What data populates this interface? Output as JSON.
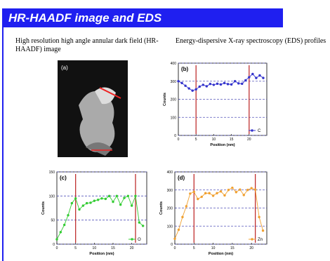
{
  "header": {
    "title": "HR-HAADF image and EDS"
  },
  "left": {
    "caption": "High resolution high angle annular dark field (HR-HAADF) image",
    "image_label": "(a)"
  },
  "right": {
    "caption": "Energy-dispersive X-ray spectroscopy (EDS) profiles"
  },
  "chart_data": [
    {
      "type": "line",
      "label": "(b)",
      "xlabel": "Position (nm)",
      "ylabel": "Counts",
      "x": [
        0,
        1,
        2,
        3,
        4,
        5,
        6,
        7,
        8,
        9,
        10,
        11,
        12,
        13,
        14,
        15,
        16,
        17,
        18,
        19,
        20,
        21,
        22,
        23,
        24
      ],
      "series": [
        {
          "name": "C",
          "color": "#3333cc",
          "values": [
            300,
            290,
            275,
            260,
            248,
            255,
            270,
            280,
            272,
            285,
            280,
            286,
            282,
            290,
            284,
            282,
            300,
            288,
            286,
            305,
            322,
            340,
            318,
            332,
            318
          ]
        }
      ],
      "xlim": [
        0,
        25
      ],
      "ylim": [
        0,
        400
      ],
      "xticks": [
        0,
        5,
        10,
        15,
        20
      ],
      "yticks": [
        0,
        100,
        200,
        300,
        400
      ],
      "grid": true,
      "vlines": [
        5,
        20
      ]
    },
    {
      "type": "line",
      "label": "(c)",
      "xlabel": "Position (nm)",
      "ylabel": "Counts",
      "x": [
        0,
        1,
        2,
        3,
        4,
        5,
        6,
        7,
        8,
        9,
        10,
        11,
        12,
        13,
        14,
        15,
        16,
        17,
        18,
        19,
        20,
        21,
        22,
        23
      ],
      "series": [
        {
          "name": "O",
          "color": "#33cc33",
          "values": [
            10,
            25,
            40,
            60,
            85,
            95,
            72,
            80,
            85,
            86,
            90,
            92,
            95,
            94,
            100,
            88,
            100,
            82,
            96,
            100,
            80,
            100,
            45,
            38
          ]
        }
      ],
      "xlim": [
        0,
        24
      ],
      "ylim": [
        0,
        150
      ],
      "xticks": [
        0,
        5,
        10,
        15,
        20
      ],
      "yticks": [
        0,
        50,
        100,
        150
      ],
      "grid": true,
      "vlines": [
        5,
        21
      ]
    },
    {
      "type": "line",
      "label": "(d)",
      "xlabel": "Position (nm)",
      "ylabel": "Counts",
      "x": [
        0,
        1,
        2,
        3,
        4,
        5,
        6,
        7,
        8,
        9,
        10,
        11,
        12,
        13,
        14,
        15,
        16,
        17,
        18,
        19,
        20,
        21,
        22,
        23
      ],
      "series": [
        {
          "name": "Zn",
          "color": "#f0a030",
          "values": [
            30,
            80,
            150,
            210,
            280,
            290,
            250,
            262,
            282,
            282,
            268,
            282,
            292,
            270,
            300,
            312,
            288,
            302,
            272,
            300,
            310,
            302,
            150,
            75
          ]
        }
      ],
      "xlim": [
        0,
        24
      ],
      "ylim": [
        0,
        400
      ],
      "xticks": [
        0,
        5,
        10,
        15,
        20
      ],
      "yticks": [
        0,
        100,
        200,
        300,
        400
      ],
      "grid": true,
      "vlines": [
        5,
        21
      ]
    }
  ]
}
